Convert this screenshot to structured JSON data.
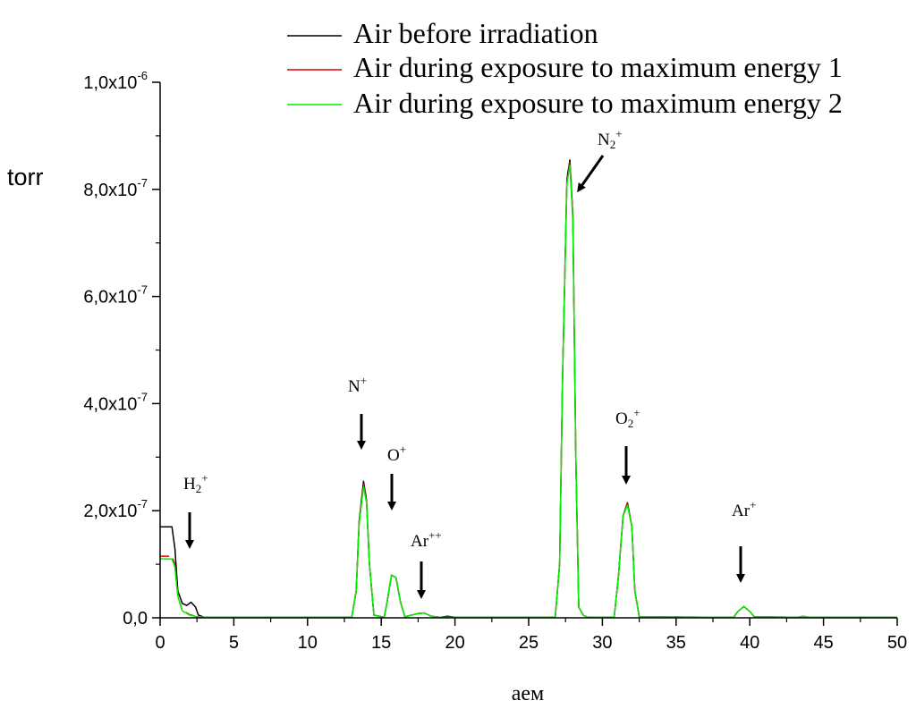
{
  "chart_data": {
    "type": "line",
    "xlabel": "аем",
    "ylabel": "torr",
    "xlim": [
      0,
      50
    ],
    "ylim": [
      0,
      1e-06
    ],
    "grid": false,
    "legend_position": "top",
    "x_ticks": [
      {
        "v": 0,
        "label": "0"
      },
      {
        "v": 5,
        "label": "5"
      },
      {
        "v": 10,
        "label": "10"
      },
      {
        "v": 15,
        "label": "15"
      },
      {
        "v": 20,
        "label": "20"
      },
      {
        "v": 25,
        "label": "25"
      },
      {
        "v": 30,
        "label": "30"
      },
      {
        "v": 35,
        "label": "35"
      },
      {
        "v": 40,
        "label": "40"
      },
      {
        "v": 45,
        "label": "45"
      },
      {
        "v": 50,
        "label": "50"
      }
    ],
    "y_ticks": [
      {
        "v": 0,
        "mant": "0,0",
        "exp": ""
      },
      {
        "v": 2e-07,
        "mant": "2,0x10",
        "exp": "-7"
      },
      {
        "v": 4e-07,
        "mant": "4,0x10",
        "exp": "-7"
      },
      {
        "v": 6e-07,
        "mant": "6,0x10",
        "exp": "-7"
      },
      {
        "v": 8e-07,
        "mant": "8,0x10",
        "exp": "-7"
      },
      {
        "v": 1e-06,
        "mant": "1,0x10",
        "exp": "-6"
      }
    ],
    "series": [
      {
        "name": "Air before irradiation",
        "color": "#000000",
        "points": [
          [
            0,
            1.7e-07
          ],
          [
            0.8,
            1.7e-07
          ],
          [
            1.0,
            1.3e-07
          ],
          [
            1.2,
            5e-08
          ],
          [
            1.5,
            2.7e-08
          ],
          [
            1.8,
            2.3e-08
          ],
          [
            2.1,
            2.9e-08
          ],
          [
            2.4,
            2e-08
          ],
          [
            2.6,
            5e-09
          ],
          [
            3.0,
            1e-09
          ],
          [
            13.0,
            1e-09
          ],
          [
            13.3,
            5e-08
          ],
          [
            13.5,
            1.8e-07
          ],
          [
            13.8,
            2.55e-07
          ],
          [
            14.0,
            2.2e-07
          ],
          [
            14.2,
            1e-07
          ],
          [
            14.5,
            5e-09
          ],
          [
            15.2,
            1e-09
          ],
          [
            15.4,
            3e-08
          ],
          [
            15.7,
            8e-08
          ],
          [
            16.0,
            7.5e-08
          ],
          [
            16.3,
            3e-08
          ],
          [
            16.6,
            2e-09
          ],
          [
            17.5,
            8e-09
          ],
          [
            17.9,
            9e-09
          ],
          [
            18.4,
            3e-09
          ],
          [
            19.0,
            1e-09
          ],
          [
            19.5,
            3e-09
          ],
          [
            20.0,
            1e-09
          ],
          [
            26.8,
            1e-09
          ],
          [
            27.1,
            1e-07
          ],
          [
            27.3,
            4.5e-07
          ],
          [
            27.6,
            8.2e-07
          ],
          [
            27.8,
            8.55e-07
          ],
          [
            28.0,
            7.5e-07
          ],
          [
            28.2,
            3e-07
          ],
          [
            28.4,
            2e-08
          ],
          [
            28.7,
            5e-09
          ],
          [
            29.0,
            1e-09
          ],
          [
            30.8,
            1e-09
          ],
          [
            31.1,
            8e-08
          ],
          [
            31.4,
            1.9e-07
          ],
          [
            31.7,
            2.15e-07
          ],
          [
            32.0,
            1.7e-07
          ],
          [
            32.2,
            5e-08
          ],
          [
            32.5,
            2e-09
          ],
          [
            38.9,
            1e-09
          ],
          [
            39.2,
            1.2e-08
          ],
          [
            39.6,
            2.1e-08
          ],
          [
            40.0,
            1.2e-08
          ],
          [
            40.3,
            2e-09
          ],
          [
            43.3,
            1e-09
          ],
          [
            43.6,
            3e-09
          ],
          [
            44.0,
            1e-09
          ],
          [
            50,
            1e-09
          ]
        ]
      },
      {
        "name": "Air during exposure to maximum energy 1",
        "color": "#dd0000",
        "points": [
          [
            0,
            1.15e-07
          ],
          [
            0.8,
            1.15e-07
          ],
          [
            1.0,
            1e-07
          ],
          [
            1.2,
            4e-08
          ],
          [
            1.5,
            1.4e-08
          ],
          [
            2.0,
            6e-09
          ],
          [
            2.5,
            2e-09
          ],
          [
            3.0,
            1e-09
          ],
          [
            13.0,
            1e-09
          ],
          [
            13.3,
            5e-08
          ],
          [
            13.5,
            1.8e-07
          ],
          [
            13.8,
            2.5e-07
          ],
          [
            14.0,
            2.2e-07
          ],
          [
            14.2,
            1e-07
          ],
          [
            14.5,
            5e-09
          ],
          [
            15.2,
            1e-09
          ],
          [
            15.4,
            3e-08
          ],
          [
            15.7,
            8e-08
          ],
          [
            16.0,
            7.5e-08
          ],
          [
            16.3,
            3e-08
          ],
          [
            16.6,
            2e-09
          ],
          [
            17.5,
            8e-09
          ],
          [
            17.9,
            9e-09
          ],
          [
            18.4,
            3e-09
          ],
          [
            19.0,
            1e-09
          ],
          [
            26.8,
            1e-09
          ],
          [
            27.1,
            1e-07
          ],
          [
            27.3,
            4.5e-07
          ],
          [
            27.6,
            8.2e-07
          ],
          [
            27.8,
            8.5e-07
          ],
          [
            28.0,
            7.5e-07
          ],
          [
            28.2,
            3e-07
          ],
          [
            28.4,
            2e-08
          ],
          [
            28.7,
            5e-09
          ],
          [
            29.0,
            1e-09
          ],
          [
            30.8,
            1e-09
          ],
          [
            31.1,
            8e-08
          ],
          [
            31.4,
            1.9e-07
          ],
          [
            31.7,
            2.15e-07
          ],
          [
            32.0,
            1.7e-07
          ],
          [
            32.2,
            5e-08
          ],
          [
            32.5,
            2e-09
          ],
          [
            38.9,
            1e-09
          ],
          [
            39.2,
            1.2e-08
          ],
          [
            39.6,
            2.1e-08
          ],
          [
            40.0,
            1.2e-08
          ],
          [
            40.3,
            2e-09
          ],
          [
            43.3,
            1e-09
          ],
          [
            43.6,
            3e-09
          ],
          [
            44.0,
            1e-09
          ],
          [
            50,
            1e-09
          ]
        ]
      },
      {
        "name": "Air during exposure to maximum energy 2",
        "color": "#00ee00",
        "points": [
          [
            0,
            1.1e-07
          ],
          [
            0.8,
            1.1e-07
          ],
          [
            1.0,
            9.5e-08
          ],
          [
            1.2,
            4e-08
          ],
          [
            1.5,
            1.3e-08
          ],
          [
            2.0,
            5e-09
          ],
          [
            2.5,
            2e-09
          ],
          [
            3.0,
            1e-09
          ],
          [
            13.0,
            1e-09
          ],
          [
            13.3,
            5e-08
          ],
          [
            13.5,
            1.75e-07
          ],
          [
            13.8,
            2.45e-07
          ],
          [
            14.0,
            2.15e-07
          ],
          [
            14.2,
            1e-07
          ],
          [
            14.5,
            5e-09
          ],
          [
            15.2,
            1e-09
          ],
          [
            15.4,
            3e-08
          ],
          [
            15.7,
            8e-08
          ],
          [
            16.0,
            7.5e-08
          ],
          [
            16.3,
            3e-08
          ],
          [
            16.6,
            2e-09
          ],
          [
            17.5,
            8e-09
          ],
          [
            17.9,
            9e-09
          ],
          [
            18.4,
            3e-09
          ],
          [
            19.0,
            1e-09
          ],
          [
            26.8,
            1e-09
          ],
          [
            27.1,
            1e-07
          ],
          [
            27.3,
            4.5e-07
          ],
          [
            27.6,
            8.1e-07
          ],
          [
            27.8,
            8.45e-07
          ],
          [
            28.0,
            7.4e-07
          ],
          [
            28.2,
            3e-07
          ],
          [
            28.4,
            2e-08
          ],
          [
            28.7,
            5e-09
          ],
          [
            29.0,
            1e-09
          ],
          [
            30.8,
            1e-09
          ],
          [
            31.1,
            8e-08
          ],
          [
            31.4,
            1.9e-07
          ],
          [
            31.7,
            2.1e-07
          ],
          [
            32.0,
            1.7e-07
          ],
          [
            32.2,
            5e-08
          ],
          [
            32.5,
            2e-09
          ],
          [
            38.9,
            1e-09
          ],
          [
            39.2,
            1.2e-08
          ],
          [
            39.6,
            2.1e-08
          ],
          [
            40.0,
            1.2e-08
          ],
          [
            40.3,
            2e-09
          ],
          [
            43.3,
            1e-09
          ],
          [
            43.6,
            3e-09
          ],
          [
            44.0,
            1e-09
          ],
          [
            50,
            1e-09
          ]
        ]
      }
    ],
    "annotations": [
      {
        "base": "H",
        "sub": "2",
        "sup": "+",
        "at": [
          2.0,
          1.2e-07
        ]
      },
      {
        "base": "N",
        "sub": "",
        "sup": "+",
        "at": [
          13.8,
          3.5e-07
        ]
      },
      {
        "base": "O",
        "sub": "",
        "sup": "+",
        "at": [
          15.5,
          2.3e-07
        ]
      },
      {
        "base": "Ar",
        "sub": "",
        "sup": "++",
        "at": [
          17.7,
          3e-08
        ]
      },
      {
        "base": "N",
        "sub": "2",
        "sup": "+",
        "at": [
          28.5,
          9e-07
        ]
      },
      {
        "base": "O",
        "sub": "2",
        "sup": "+",
        "at": [
          31.5,
          3e-07
        ]
      },
      {
        "base": "Ar",
        "sub": "",
        "sup": "+",
        "at": [
          39.5,
          7e-08
        ]
      }
    ]
  }
}
